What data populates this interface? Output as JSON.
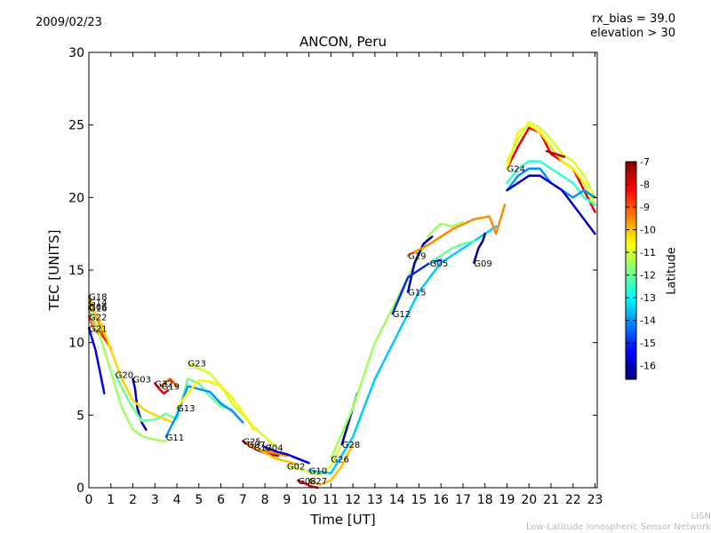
{
  "header": {
    "date": "2009/02/23",
    "rx_bias": "rx_bias = 39.0",
    "elevation": "elevation > 30"
  },
  "footer": {
    "credit_short": "LISN",
    "credit_long": "Low-Latitude Ionospheric Sensor Network"
  },
  "colors": {
    "scale": [
      "#00007f",
      "#0000ff",
      "#007fff",
      "#00ffff",
      "#7fff7f",
      "#ffff00",
      "#ff7f00",
      "#ff0000",
      "#7f0000"
    ]
  },
  "chart_data": {
    "type": "line",
    "title": "ANCON, Peru",
    "xlabel": "Time [UT]",
    "ylabel": "TEC [UNITS]",
    "xlim": [
      0,
      23.1
    ],
    "ylim": [
      0,
      30
    ],
    "xticks": [
      0,
      1,
      2,
      3,
      4,
      5,
      6,
      7,
      8,
      9,
      10,
      11,
      12,
      13,
      14,
      15,
      16,
      17,
      18,
      19,
      20,
      21,
      22,
      23
    ],
    "yticks": [
      0,
      5,
      10,
      15,
      20,
      25,
      30
    ],
    "grid": false,
    "colorbar": {
      "label": "Latitude",
      "range": [
        -16.6,
        -7
      ],
      "ticks": [
        -7,
        -8,
        -9,
        -10,
        -11,
        -12,
        -13,
        -14,
        -15,
        -16
      ]
    },
    "series": [
      {
        "name": "G18",
        "lat": -9.5,
        "x": [
          0,
          0.4,
          0.8,
          1.0
        ],
        "y": [
          13.2,
          11.5,
          10.2,
          9.5
        ]
      },
      {
        "name": "G16",
        "lat": -8.5,
        "x": [
          0,
          0.3,
          0.7,
          1.0
        ],
        "y": [
          12.4,
          11.2,
          10.3,
          9.6
        ]
      },
      {
        "name": "G22",
        "lat": -9.2,
        "x": [
          0,
          0.2,
          0.5
        ],
        "y": [
          11.8,
          11.0,
          10.5
        ]
      },
      {
        "name": "G21",
        "lat": -15.5,
        "x": [
          0,
          0.3,
          0.5,
          0.7
        ],
        "y": [
          11.0,
          9.5,
          8.0,
          6.5
        ]
      },
      {
        "name": "G06",
        "lat": -11.5,
        "x": [
          0,
          0.5,
          1.0,
          1.5,
          2.0,
          2.5,
          3.0,
          3.5
        ],
        "y": [
          12.5,
          10.5,
          8.0,
          5.5,
          4.0,
          3.5,
          3.3,
          3.2
        ]
      },
      {
        "name": "G03",
        "lat": -16.0,
        "x": [
          2.0,
          2.1,
          2.2,
          2.4,
          2.6
        ],
        "y": [
          7.5,
          6.8,
          5.5,
          4.5,
          4.0
        ]
      },
      {
        "name": "G14",
        "lat": -10.2,
        "x": [
          0,
          0.5,
          1.0,
          1.5,
          2.0,
          2.5,
          3.0,
          3.5,
          3.8
        ],
        "y": [
          12.8,
          11.5,
          9.5,
          7.5,
          6.0,
          5.4,
          5.0,
          4.7,
          4.5
        ]
      },
      {
        "name": "G32",
        "lat": -8.0,
        "x": [
          3.0,
          3.2,
          3.4,
          3.6
        ],
        "y": [
          7.2,
          6.8,
          6.5,
          6.7
        ]
      },
      {
        "name": "G19",
        "lat": -9.0,
        "x": [
          3.3,
          3.5,
          3.7,
          4.0
        ],
        "y": [
          7.0,
          7.3,
          7.5,
          7.0
        ]
      },
      {
        "name": "G20",
        "lat": -12.0,
        "x": [
          1.2,
          1.8,
          2.4,
          3.0,
          3.5,
          4.0,
          4.5,
          5.0,
          5.5,
          6.0,
          6.5
        ],
        "y": [
          7.8,
          6.0,
          4.6,
          4.7,
          5.1,
          4.7,
          7.5,
          7.2,
          6.3,
          5.6,
          5.4
        ]
      },
      {
        "name": "G23",
        "lat": -11.0,
        "x": [
          4.5,
          5.0,
          5.5,
          6.0,
          6.5,
          7.0,
          7.5,
          8.0,
          8.5
        ],
        "y": [
          8.6,
          8.2,
          7.9,
          7.0,
          5.8,
          5.0,
          4.2,
          3.5,
          2.8
        ]
      },
      {
        "name": "G11",
        "lat": -14.0,
        "x": [
          3.5,
          4.0,
          4.5,
          5.0,
          5.5,
          6.0,
          6.5,
          7.0
        ],
        "y": [
          3.5,
          5.0,
          7.0,
          6.8,
          6.6,
          5.8,
          5.3,
          4.5
        ]
      },
      {
        "name": "G13",
        "lat": -10.5,
        "x": [
          4.0,
          4.5,
          5.0,
          5.5,
          6.0,
          6.5,
          7.0,
          7.5
        ],
        "y": [
          5.5,
          6.5,
          7.4,
          7.3,
          7.0,
          6.2,
          5.2,
          4.0
        ]
      },
      {
        "name": "G25",
        "lat": -7.5,
        "x": [
          7.0,
          7.4,
          7.8,
          8.2,
          8.6
        ],
        "y": [
          3.2,
          2.8,
          2.5,
          2.3,
          2.2
        ]
      },
      {
        "name": "G07",
        "lat": -9.5,
        "x": [
          7.2,
          7.8,
          8.4,
          9.0
        ],
        "y": [
          3.0,
          2.6,
          2.4,
          2.2
        ]
      },
      {
        "name": "G17",
        "lat": -10.0,
        "x": [
          7.5,
          8.0,
          8.5,
          9.0,
          9.5
        ],
        "y": [
          2.8,
          2.4,
          2.0,
          1.8,
          1.6
        ]
      },
      {
        "name": "G04",
        "lat": -15.8,
        "x": [
          8.0,
          8.5,
          9.0,
          9.5,
          10.0
        ],
        "y": [
          2.8,
          2.5,
          2.3,
          2.0,
          1.7
        ]
      },
      {
        "name": "G08",
        "lat": -8.0,
        "x": [
          9.5,
          9.8,
          10.1,
          10.4
        ],
        "y": [
          0.5,
          0.3,
          0.1,
          0.0
        ]
      },
      {
        "name": "G02",
        "lat": -11.0,
        "x": [
          9.0,
          9.5,
          10.0,
          10.5,
          11.0,
          11.5,
          12.0
        ],
        "y": [
          1.5,
          1.3,
          1.1,
          0.9,
          1.5,
          3.0,
          5.5
        ]
      },
      {
        "name": "G27",
        "lat": -10.0,
        "x": [
          10.0,
          10.5,
          11.0,
          11.5,
          12.0
        ],
        "y": [
          0.5,
          0.2,
          0.5,
          1.5,
          3.0
        ]
      },
      {
        "name": "G28",
        "lat": -16.2,
        "x": [
          11.5,
          11.8,
          12.0,
          12.2
        ],
        "y": [
          3.0,
          4.5,
          5.5,
          6.5
        ]
      },
      {
        "name": "G10",
        "lat": -13.5,
        "x": [
          10.0,
          11.0,
          12.0,
          13.0,
          14.0,
          15.0,
          16.0,
          17.0,
          18.0,
          18.5
        ],
        "y": [
          1.2,
          1.0,
          3.5,
          7.5,
          10.5,
          13.5,
          15.5,
          16.5,
          17.5,
          18.0
        ]
      },
      {
        "name": "G26",
        "lat": -11.5,
        "x": [
          11.0,
          12.0,
          13.0,
          14.0,
          15.0,
          15.5,
          16.0,
          16.5,
          17.0
        ],
        "y": [
          2.0,
          5.5,
          10.0,
          13.0,
          16.0,
          17.5,
          18.2,
          18.0,
          18.3
        ]
      },
      {
        "name": "G15",
        "lat": -16.3,
        "x": [
          14.5,
          14.8,
          15.2,
          15.6
        ],
        "y": [
          13.5,
          15.5,
          16.8,
          17.3
        ]
      },
      {
        "name": "G12",
        "lat": -15.0,
        "x": [
          13.8,
          14.5,
          15.0,
          15.5,
          16.0
        ],
        "y": [
          12.0,
          14.5,
          15.0,
          15.5,
          15.7
        ]
      },
      {
        "name": "G05",
        "lat": -12.0,
        "x": [
          15.5,
          16.0,
          16.5,
          17.0,
          17.5
        ],
        "y": [
          15.5,
          16.0,
          16.5,
          16.8,
          17.0
        ]
      },
      {
        "name": "G09",
        "lat": -16.5,
        "x": [
          17.5,
          17.7,
          17.9,
          18.0
        ],
        "y": [
          15.5,
          16.5,
          17.0,
          17.5
        ]
      },
      {
        "name": "G29",
        "lat": -9.5,
        "x": [
          14.5,
          15.5,
          16.5,
          17.5,
          18.2,
          18.5,
          18.9
        ],
        "y": [
          16.0,
          16.8,
          17.8,
          18.5,
          18.7,
          17.5,
          19.5
        ]
      },
      {
        "name": "G24",
        "lat": -8.0,
        "x": [
          19.0,
          19.5,
          20.0,
          20.5,
          21.0,
          21.5,
          22.0,
          22.5,
          23.0
        ],
        "y": [
          22.0,
          23.5,
          24.8,
          24.5,
          23.0,
          22.5,
          22.0,
          20.5,
          19.0
        ]
      },
      {
        "name": "",
        "lat": -10.5,
        "x": [
          19.0,
          19.5,
          20.0,
          20.5,
          21.0,
          21.5,
          22.0,
          22.5,
          23.0
        ],
        "y": [
          22.0,
          24.5,
          25.0,
          24.5,
          23.5,
          22.5,
          22.0,
          21.0,
          19.5
        ]
      },
      {
        "name": "",
        "lat": -11.0,
        "x": [
          19.0,
          19.5,
          20.0,
          20.5,
          21.0,
          21.5,
          22.0,
          22.5,
          23.0
        ],
        "y": [
          22.5,
          24.0,
          25.2,
          24.8,
          24.0,
          23.0,
          22.5,
          21.5,
          20.0
        ]
      },
      {
        "name": "",
        "lat": -12.5,
        "x": [
          19.0,
          19.5,
          20.0,
          20.5,
          21.0,
          21.5,
          22.0,
          22.5,
          23.0
        ],
        "y": [
          21.0,
          22.0,
          22.5,
          22.5,
          22.0,
          21.5,
          21.0,
          20.0,
          19.5
        ]
      },
      {
        "name": "",
        "lat": -14.0,
        "x": [
          19.0,
          19.5,
          20.0,
          20.5,
          21.0,
          21.5,
          22.0,
          22.5,
          23.0
        ],
        "y": [
          20.5,
          21.5,
          22.0,
          22.0,
          21.0,
          20.5,
          20.0,
          20.5,
          20.0
        ]
      },
      {
        "name": "",
        "lat": -16.0,
        "x": [
          19.0,
          19.5,
          20.0,
          20.5,
          21.0,
          21.5,
          22.0,
          22.5,
          23.0
        ],
        "y": [
          20.5,
          21.0,
          21.5,
          21.5,
          21.0,
          20.5,
          19.5,
          18.5,
          17.5
        ]
      },
      {
        "name": "",
        "lat": -7.5,
        "x": [
          20.8,
          21.2,
          21.6
        ],
        "y": [
          23.2,
          23.0,
          22.8
        ]
      }
    ]
  }
}
